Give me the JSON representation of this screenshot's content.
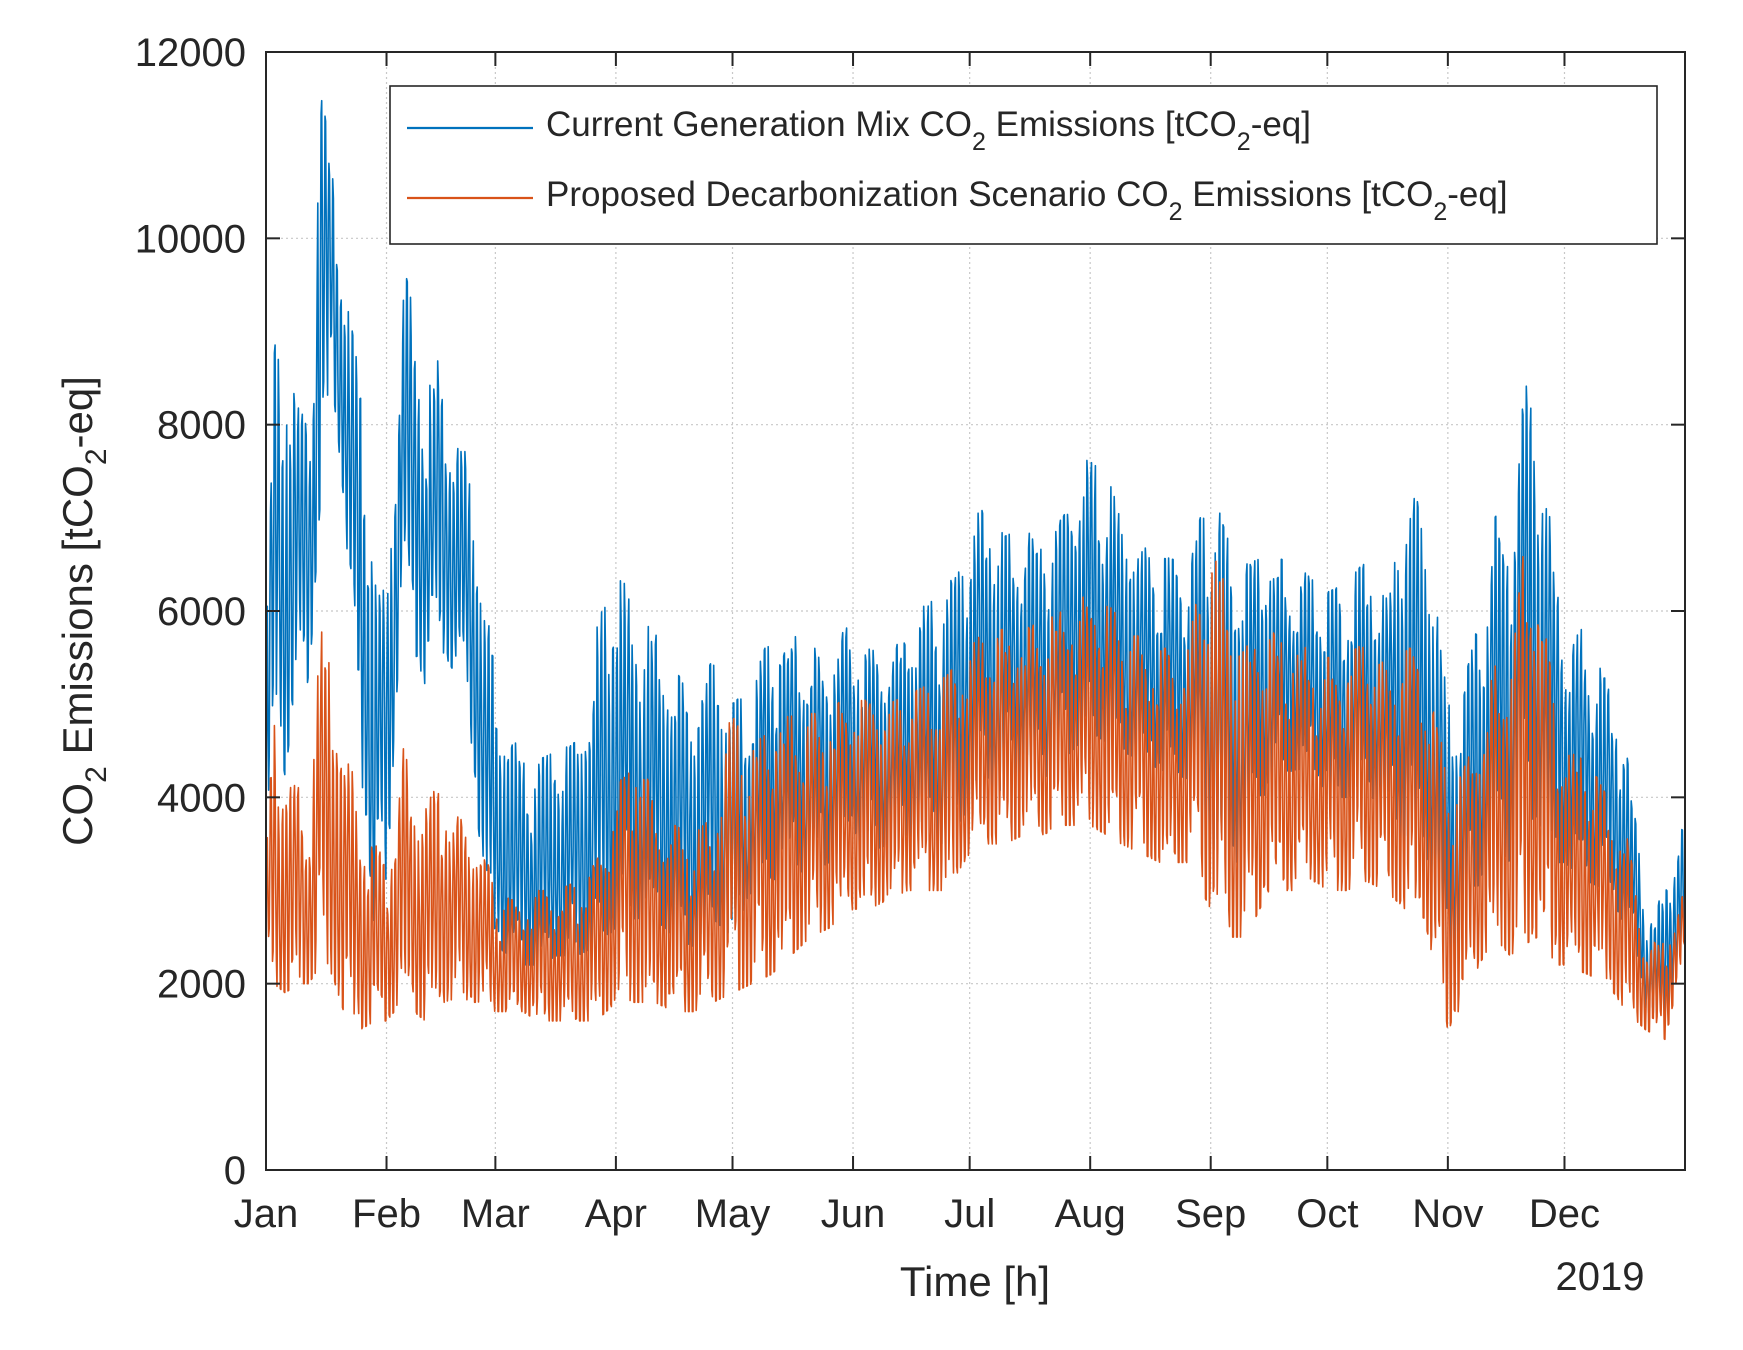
{
  "chart_data": {
    "type": "line",
    "title": "",
    "xlabel": "Time [h]",
    "ylabel_parts": [
      "CO",
      "2",
      " Emissions [tCO",
      "2",
      "-eq]"
    ],
    "year_label": "2019",
    "months": [
      "Jan",
      "Feb",
      "Mar",
      "Apr",
      "May",
      "Jun",
      "Jul",
      "Aug",
      "Sep",
      "Oct",
      "Nov",
      "Dec"
    ],
    "month_start_day": [
      0,
      31,
      59,
      90,
      120,
      151,
      181,
      212,
      243,
      273,
      304,
      334
    ],
    "x_range_days": [
      0,
      365
    ],
    "ylim": [
      0,
      12000
    ],
    "yticks": [
      0,
      2000,
      4000,
      6000,
      8000,
      10000,
      12000
    ],
    "ytick_labels": [
      "0",
      "2000",
      "4000",
      "6000",
      "8000",
      "10000",
      "12000"
    ],
    "grid": true,
    "legend_position": "top-right",
    "series": [
      {
        "name": "Current Generation Mix",
        "legend_parts": [
          "Current Generation Mix CO",
          "2",
          " Emissions [tCO",
          "2",
          "-eq]"
        ],
        "color": "#0072BD",
        "envelope_daily": {
          "day": [
            0,
            2,
            5,
            8,
            11,
            14,
            17,
            20,
            24,
            28,
            31,
            35,
            38,
            41,
            45,
            49,
            52,
            55,
            59,
            63,
            66,
            70,
            75,
            80,
            85,
            90,
            95,
            100,
            105,
            110,
            115,
            120,
            125,
            130,
            135,
            140,
            145,
            151,
            155,
            160,
            165,
            170,
            175,
            181,
            185,
            190,
            195,
            200,
            205,
            212,
            216,
            220,
            225,
            230,
            237,
            243,
            247,
            252,
            258,
            265,
            270,
            273,
            278,
            283,
            288,
            293,
            298,
            304,
            308,
            312,
            316,
            320,
            323,
            327,
            331,
            334,
            340,
            345,
            350,
            355,
            360,
            365
          ],
          "low": [
            2800,
            5000,
            4200,
            5500,
            5200,
            7200,
            8500,
            7200,
            4500,
            2600,
            3000,
            6200,
            5600,
            5200,
            5600,
            5300,
            5000,
            3500,
            2400,
            2300,
            2200,
            2200,
            2300,
            2300,
            2400,
            2600,
            2700,
            2700,
            2500,
            2400,
            2700,
            2500,
            3000,
            3100,
            3200,
            3200,
            3300,
            3600,
            3400,
            3500,
            3600,
            3500,
            3500,
            3900,
            4000,
            4100,
            4300,
            4200,
            4400,
            4700,
            4600,
            4500,
            4400,
            4300,
            4200,
            3500,
            3200,
            3400,
            4200,
            4300,
            4300,
            4000,
            4000,
            4100,
            3800,
            3500,
            3500,
            2300,
            2500,
            3100,
            3500,
            3300,
            3700,
            3800,
            3300,
            3300,
            3100,
            3000,
            2600,
            1700,
            1600,
            2600
          ],
          "high": [
            5500,
            8800,
            9300,
            8200,
            8000,
            11700,
            10700,
            9600,
            8500,
            6800,
            6000,
            9800,
            9200,
            8400,
            8800,
            8000,
            7600,
            6600,
            5300,
            4700,
            4400,
            4400,
            4500,
            4600,
            5800,
            6600,
            5900,
            5800,
            5400,
            5000,
            5500,
            5000,
            5200,
            5800,
            5800,
            5600,
            5600,
            5900,
            5600,
            5500,
            5800,
            6100,
            6200,
            7000,
            7100,
            6800,
            6900,
            6800,
            7000,
            7700,
            7500,
            7000,
            6700,
            6600,
            6500,
            7400,
            6800,
            6500,
            6600,
            6500,
            6300,
            6200,
            6300,
            6600,
            6100,
            7300,
            7100,
            5000,
            5200,
            5900,
            7000,
            7200,
            8500,
            8200,
            6700,
            5800,
            5800,
            5200,
            4600,
            2700,
            3000,
            3800
          ]
        }
      },
      {
        "name": "Proposed Decarbonization Scenario",
        "legend_parts": [
          "Proposed Decarbonization Scenario CO",
          "2",
          " Emissions [tCO",
          "2",
          "-eq]"
        ],
        "color": "#D95319",
        "envelope_daily": {
          "day": [
            0,
            2,
            5,
            8,
            11,
            14,
            17,
            20,
            24,
            28,
            31,
            35,
            38,
            41,
            45,
            49,
            52,
            55,
            59,
            63,
            66,
            70,
            75,
            80,
            85,
            90,
            95,
            100,
            105,
            110,
            115,
            120,
            125,
            130,
            135,
            140,
            145,
            151,
            155,
            160,
            165,
            170,
            175,
            181,
            185,
            190,
            195,
            200,
            205,
            212,
            216,
            220,
            225,
            230,
            237,
            243,
            247,
            252,
            258,
            265,
            270,
            273,
            278,
            283,
            288,
            293,
            298,
            304,
            308,
            312,
            316,
            320,
            323,
            327,
            331,
            334,
            340,
            345,
            350,
            355,
            360,
            365
          ],
          "low": [
            2000,
            2000,
            1900,
            2000,
            2000,
            2200,
            2100,
            1700,
            1500,
            1600,
            1600,
            1800,
            1700,
            1600,
            1800,
            1800,
            1800,
            1800,
            1700,
            1700,
            1700,
            1600,
            1600,
            1600,
            1600,
            1800,
            1800,
            1800,
            1700,
            1700,
            1800,
            1900,
            2000,
            2100,
            2300,
            2500,
            2600,
            2800,
            2800,
            2900,
            3000,
            3000,
            3000,
            3400,
            3500,
            3500,
            3600,
            3600,
            3700,
            3700,
            3600,
            3500,
            3400,
            3300,
            3300,
            2800,
            2500,
            2500,
            3000,
            3000,
            3100,
            3000,
            3000,
            3100,
            3000,
            2800,
            2700,
            1500,
            1800,
            2200,
            2500,
            2300,
            2400,
            2500,
            2200,
            2200,
            2100,
            2000,
            1700,
            1500,
            1400,
            2400
          ],
          "high": [
            3300,
            4900,
            4200,
            4200,
            3800,
            5900,
            5400,
            4600,
            4000,
            3500,
            3300,
            4600,
            4100,
            3900,
            4200,
            3800,
            3700,
            3600,
            3000,
            2900,
            2900,
            3000,
            3000,
            3100,
            3300,
            4000,
            4700,
            3900,
            3700,
            3600,
            3800,
            5000,
            4500,
            4800,
            4900,
            4900,
            4900,
            5200,
            5000,
            5000,
            5100,
            5200,
            5300,
            5600,
            5800,
            5800,
            5800,
            5900,
            6000,
            6200,
            6100,
            5900,
            5700,
            5600,
            5600,
            6900,
            6200,
            5700,
            5800,
            5700,
            5500,
            5500,
            5500,
            5700,
            5400,
            5600,
            5600,
            4200,
            4300,
            4700,
            5400,
            5600,
            6600,
            6400,
            5200,
            4500,
            4400,
            4000,
            3600,
            2400,
            2500,
            3000
          ]
        }
      }
    ]
  }
}
